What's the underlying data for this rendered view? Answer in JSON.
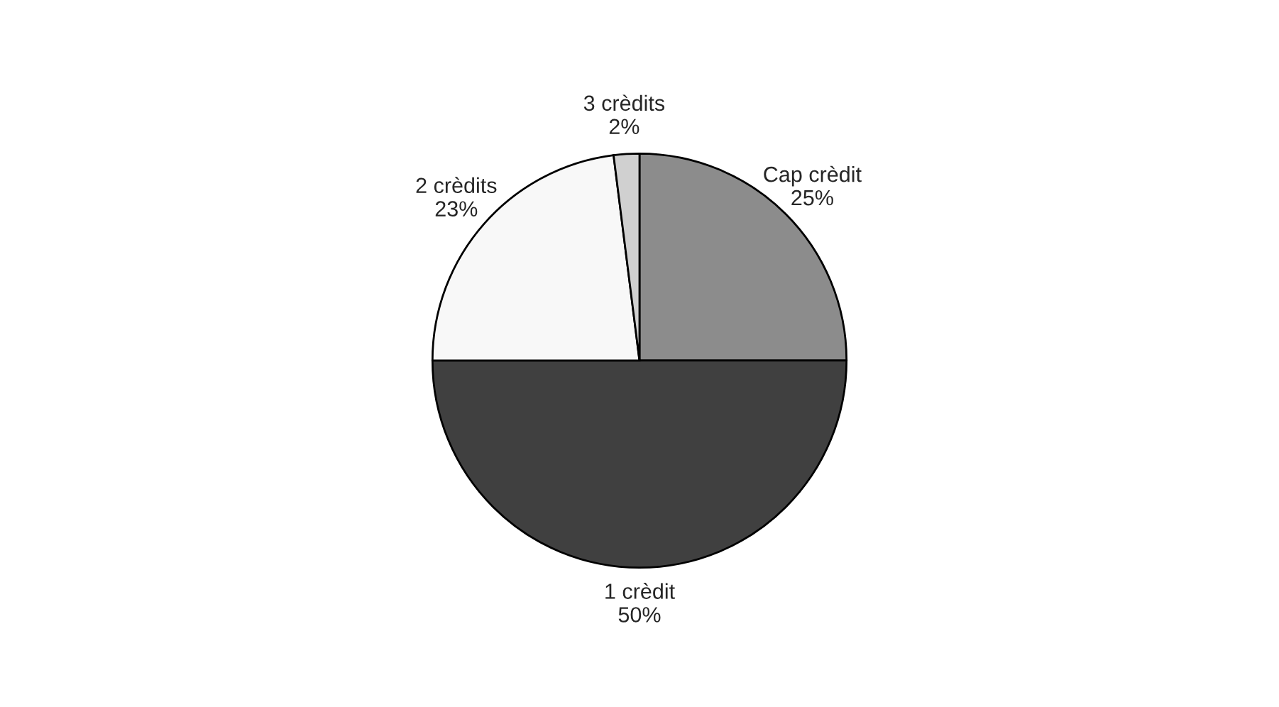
{
  "chart_data": {
    "type": "pie",
    "categories": [
      "Cap crèdit",
      "1 crèdit",
      "2 crèdits",
      "3 crèdits"
    ],
    "values": [
      25,
      50,
      23,
      2
    ],
    "value_labels": [
      "25%",
      "50%",
      "23%",
      "2%"
    ],
    "colors": [
      "#8c8c8c",
      "#404040",
      "#f8f8f8",
      "#d0d0d0"
    ],
    "legend": false
  }
}
